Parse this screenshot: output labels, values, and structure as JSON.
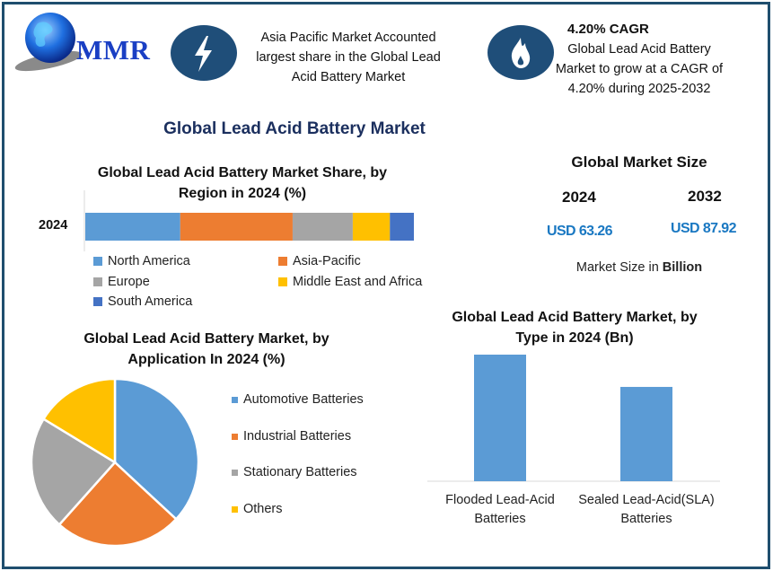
{
  "brand": {
    "logo_text": "MMR"
  },
  "info_cards": [
    {
      "icon": "lightning-icon",
      "lines": [
        "Asia Pacific Market Accounted",
        "largest share in the Global Lead",
        "Acid Battery Market"
      ]
    },
    {
      "icon": "flame-icon",
      "heading": "4.20% CAGR",
      "lines": [
        "Global Lead Acid Battery",
        "Market to grow at a CAGR of",
        "4.20% during 2025-2032"
      ]
    }
  ],
  "colors": {
    "frame": "#1f4e6e",
    "icon_bg": "#1f4e79",
    "title_navy": "#1b2f5e",
    "value_blue": "#1a78c2",
    "series": [
      "#5b9bd5",
      "#ed7d31",
      "#a5a5a5",
      "#ffc000",
      "#4472c4"
    ]
  },
  "main_title": "Global Lead Acid Battery Market",
  "market_size": {
    "title": "Global Market Size",
    "years": [
      {
        "year": "2024",
        "value": "USD 63.26"
      },
      {
        "year": "2032",
        "value": "USD 87.92"
      }
    ],
    "unit_prefix": "Market Size in ",
    "unit_bold": "Billion"
  },
  "chart_data": [
    {
      "type": "bar",
      "orientation": "horizontal-stacked",
      "title_lines": [
        "Global Lead Acid Battery Market Share, by",
        "Region in 2024 (%)"
      ],
      "categories": [
        "2024"
      ],
      "series": [
        {
          "name": "North America",
          "values": [
            28.9
          ]
        },
        {
          "name": "Asia-Pacific",
          "values": [
            34.2
          ]
        },
        {
          "name": "Europe",
          "values": [
            18.3
          ]
        },
        {
          "name": "Middle East and Africa",
          "values": [
            11.3
          ]
        },
        {
          "name": "South America",
          "values": [
            7.3
          ]
        }
      ],
      "xlim": [
        0,
        100
      ],
      "legend": "bottom",
      "grid": false
    },
    {
      "type": "pie",
      "title_lines": [
        "Global Lead Acid Battery Market, by",
        "Application In 2024 (%)"
      ],
      "labels": [
        "Automotive Batteries",
        "Industrial Batteries",
        "Stationary Batteries",
        "Others"
      ],
      "values": [
        36.9,
        24.7,
        22.1,
        16.3
      ],
      "legend": "right"
    },
    {
      "type": "bar",
      "title_lines": [
        "Global Lead Acid Battery Market, by",
        "Type in 2024 (Bn)"
      ],
      "categories": [
        [
          "Flooded Lead-Acid",
          "Batteries"
        ],
        [
          "Sealed Lead-Acid(SLA)",
          "Batteries"
        ]
      ],
      "values": [
        1.0,
        0.745
      ],
      "values_note": "relative bar heights; no axis or value labels in source",
      "ylim": [
        0,
        1.0
      ],
      "grid": false,
      "legend": "none"
    }
  ]
}
